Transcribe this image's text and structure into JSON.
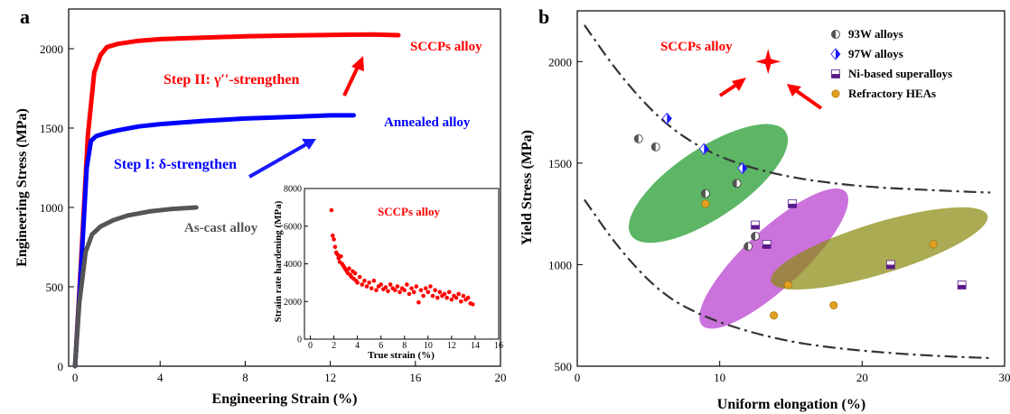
{
  "chart_data": [
    {
      "panel_label": "a",
      "type": "line",
      "xlabel": "Engineering Strain (%)",
      "ylabel": "Engineering Stress (MPa)",
      "xlim": [
        -0.3,
        20
      ],
      "ylim": [
        0,
        2250
      ],
      "xticks": [
        0,
        4,
        8,
        12,
        16,
        20
      ],
      "yticks": [
        0,
        500,
        1000,
        1500,
        2000
      ],
      "series": [
        {
          "name": "SCCPs alloy",
          "color": "#ff0000",
          "x": [
            0,
            0.3,
            0.6,
            0.9,
            1.2,
            1.5,
            2,
            3,
            4,
            6,
            8,
            10,
            12,
            14,
            15.2
          ],
          "y": [
            0,
            700,
            1450,
            1850,
            1960,
            2010,
            2030,
            2050,
            2060,
            2070,
            2078,
            2083,
            2087,
            2090,
            2085
          ]
        },
        {
          "name": "Annealed alloy",
          "color": "#0000ff",
          "x": [
            0,
            0.3,
            0.55,
            0.75,
            1,
            1.5,
            2,
            3,
            4,
            6,
            8,
            10,
            12,
            13.1
          ],
          "y": [
            0,
            650,
            1250,
            1420,
            1450,
            1470,
            1485,
            1510,
            1525,
            1545,
            1560,
            1570,
            1580,
            1580
          ]
        },
        {
          "name": "As-cast alloy",
          "color": "#555555",
          "x": [
            0,
            0.2,
            0.5,
            0.8,
            1.2,
            1.8,
            2.5,
            3.5,
            4.5,
            5.7
          ],
          "y": [
            0,
            400,
            720,
            830,
            880,
            920,
            950,
            975,
            990,
            1000
          ]
        }
      ],
      "annotations": [
        {
          "text": "SCCPs alloy",
          "color": "#ff0000"
        },
        {
          "text": "Annealed alloy",
          "color": "#0000ff"
        },
        {
          "text": "As-cast alloy",
          "color": "#555555"
        },
        {
          "text": "Step II: γ′′-strengthen",
          "color": "#ff0000"
        },
        {
          "text": "Step I: δ-strengthen",
          "color": "#0000ff"
        }
      ],
      "inset": {
        "type": "scatter",
        "xlabel": "True strain (%)",
        "ylabel": "Strain rate hardening (MPa)",
        "label": "SCCPs alloy",
        "xlim": [
          -0.5,
          16
        ],
        "ylim": [
          0,
          8000
        ],
        "xticks": [
          0,
          2,
          4,
          6,
          8,
          10,
          12,
          14,
          16
        ],
        "yticks": [
          0,
          2000,
          4000,
          6000,
          8000
        ],
        "color": "#ff0000",
        "x": [
          1.8,
          1.9,
          2.0,
          2.1,
          2.2,
          2.3,
          2.4,
          2.5,
          2.6,
          2.7,
          2.8,
          2.9,
          3.0,
          3.1,
          3.2,
          3.3,
          3.4,
          3.5,
          3.6,
          3.7,
          3.8,
          3.9,
          4.0,
          4.2,
          4.4,
          4.6,
          4.8,
          5.0,
          5.2,
          5.4,
          5.6,
          5.8,
          6.0,
          6.2,
          6.4,
          6.6,
          6.8,
          7.0,
          7.2,
          7.4,
          7.6,
          7.8,
          8.0,
          8.2,
          8.4,
          8.6,
          8.8,
          9.0,
          9.2,
          9.4,
          9.6,
          9.8,
          10.0,
          10.2,
          10.4,
          10.6,
          10.8,
          11.0,
          11.2,
          11.4,
          11.6,
          11.8,
          12.0,
          12.2,
          12.4,
          12.6,
          12.8,
          13.0,
          13.2,
          13.4,
          13.6,
          13.8
        ],
        "y": [
          6850,
          5500,
          5300,
          4900,
          4600,
          4500,
          4300,
          4100,
          4400,
          4000,
          3900,
          3800,
          3700,
          3600,
          3500,
          3750,
          3400,
          3300,
          3600,
          3200,
          3500,
          3100,
          3000,
          3300,
          2900,
          3100,
          2800,
          3000,
          2700,
          3100,
          2600,
          2800,
          2900,
          2650,
          2750,
          2550,
          2900,
          2700,
          2600,
          2800,
          2500,
          2700,
          2600,
          2900,
          2400,
          2700,
          2500,
          2800,
          1950,
          2600,
          2300,
          2700,
          2500,
          2800,
          2300,
          2600,
          2200,
          2500,
          2300,
          2400,
          2200,
          2500,
          2100,
          2300,
          2200,
          2400,
          2000,
          2300,
          2100,
          2200,
          1900,
          1850
        ]
      }
    },
    {
      "panel_label": "b",
      "type": "scatter",
      "xlabel": "Uniform elongation (%)",
      "ylabel": "Yield Stress (MPa)",
      "xlim": [
        0,
        30
      ],
      "ylim": [
        500,
        2250
      ],
      "xticks": [
        0,
        10,
        20,
        30
      ],
      "yticks": [
        500,
        1000,
        1500,
        2000
      ],
      "legend_position": "top-right",
      "series": [
        {
          "name": "93W alloys",
          "color": "#555555",
          "marker": "half-circle",
          "x": [
            4.3,
            5.5,
            9,
            11.2,
            12,
            12.5
          ],
          "y": [
            1620,
            1580,
            1350,
            1400,
            1090,
            1140
          ]
        },
        {
          "name": "97W alloys",
          "color": "#1a1aff",
          "marker": "half-diamond",
          "x": [
            6.3,
            8.9,
            11.6
          ],
          "y": [
            1720,
            1570,
            1475
          ]
        },
        {
          "name": "Ni-based superalloys",
          "color": "#5b1a8a",
          "marker": "half-square",
          "x": [
            12.5,
            13.3,
            15.1,
            22,
            27
          ],
          "y": [
            1195,
            1100,
            1300,
            1000,
            900
          ]
        },
        {
          "name": "Refractory HEAs",
          "color": "#e0a020",
          "marker": "circle",
          "x": [
            9,
            13.8,
            14.8,
            18,
            25
          ],
          "y": [
            1300,
            750,
            900,
            800,
            1100
          ]
        }
      ],
      "highlight": {
        "label": "SCCPs alloy",
        "color": "#ff0000",
        "x": 13.4,
        "y": 2000
      },
      "regions": [
        {
          "color": "#1f9a2a",
          "center": [
            9.2,
            1400
          ],
          "semi_axes": [
            5.7,
            190
          ],
          "angle_deg": -34
        },
        {
          "color": "#b83ccf",
          "center": [
            13.8,
            1030
          ],
          "semi_axes": [
            5.3,
            160
          ],
          "angle_deg": -43
        },
        {
          "color": "#8a8a10",
          "center": [
            21.2,
            1080
          ],
          "semi_axes": [
            8.0,
            140
          ],
          "angle_deg": -17
        }
      ],
      "bounds": [
        {
          "x": [
            0.5,
            3,
            6,
            9,
            12,
            15,
            18,
            21,
            24,
            27,
            29
          ],
          "y": [
            2180,
            1930,
            1700,
            1560,
            1480,
            1430,
            1400,
            1380,
            1370,
            1360,
            1355
          ]
        },
        {
          "x": [
            0.5,
            3,
            6,
            9,
            12,
            15,
            18,
            21,
            24,
            27,
            29
          ],
          "y": [
            1320,
            1070,
            850,
            740,
            670,
            620,
            590,
            570,
            555,
            545,
            540
          ]
        }
      ]
    }
  ]
}
